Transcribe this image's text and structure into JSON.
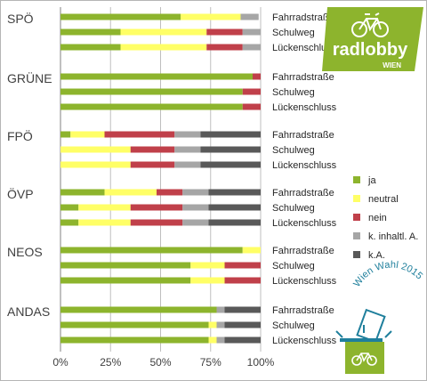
{
  "chart_data": {
    "type": "bar",
    "orientation": "horizontal",
    "stacked": true,
    "xlim": [
      0,
      100
    ],
    "x_ticks": [
      "0%",
      "25%",
      "50%",
      "75%",
      "100%"
    ],
    "grid": "vertical",
    "legend_position": "right",
    "series": [
      {
        "name": "ja",
        "color": "#8db42d"
      },
      {
        "name": "neutral",
        "color": "#ffff66"
      },
      {
        "name": "nein",
        "color": "#c0404a"
      },
      {
        "name": "k. inhaltl. A.",
        "color": "#a6a6a6"
      },
      {
        "name": "k.A.",
        "color": "#595959"
      }
    ],
    "groups": [
      {
        "party": "SPÖ",
        "rows": [
          {
            "label": "Fahrradstraße",
            "values": [
              60,
              30,
              0,
              9,
              0
            ]
          },
          {
            "label": "Schulweg",
            "values": [
              30,
              43,
              18,
              9,
              0
            ]
          },
          {
            "label": "Lückenschluss",
            "values": [
              30,
              43,
              18,
              9,
              0
            ]
          }
        ]
      },
      {
        "party": "GRÜNE",
        "rows": [
          {
            "label": "Fahrradstraße",
            "values": [
              96,
              0,
              4,
              0,
              0
            ]
          },
          {
            "label": "Schulweg",
            "values": [
              91,
              0,
              9,
              0,
              0
            ]
          },
          {
            "label": "Lückenschluss",
            "values": [
              91,
              0,
              9,
              0,
              0
            ]
          }
        ]
      },
      {
        "party": "FPÖ",
        "rows": [
          {
            "label": "Fahrradstraße",
            "values": [
              5,
              17,
              35,
              13,
              30
            ]
          },
          {
            "label": "Schulweg",
            "values": [
              0,
              35,
              22,
              13,
              30
            ]
          },
          {
            "label": "Lückenschluss",
            "values": [
              0,
              35,
              22,
              13,
              30
            ]
          }
        ]
      },
      {
        "party": "ÖVP",
        "rows": [
          {
            "label": "Fahrradstraße",
            "values": [
              22,
              26,
              13,
              13,
              26
            ]
          },
          {
            "label": "Schulweg",
            "values": [
              9,
              26,
              26,
              13,
              26
            ]
          },
          {
            "label": "Lückenschluss",
            "values": [
              9,
              26,
              26,
              13,
              26
            ]
          }
        ]
      },
      {
        "party": "NEOS",
        "rows": [
          {
            "label": "Fahrradstraße",
            "values": [
              91,
              9,
              0,
              0,
              0
            ]
          },
          {
            "label": "Schulweg",
            "values": [
              65,
              17,
              18,
              0,
              0
            ]
          },
          {
            "label": "Lückenschluss",
            "values": [
              65,
              17,
              18,
              0,
              0
            ]
          }
        ]
      },
      {
        "party": "ANDAS",
        "rows": [
          {
            "label": "Fahrradstraße",
            "values": [
              78,
              0,
              0,
              4,
              18
            ]
          },
          {
            "label": "Schulweg",
            "values": [
              74,
              4,
              0,
              4,
              18
            ]
          },
          {
            "label": "Lückenschluss",
            "values": [
              74,
              4,
              0,
              4,
              18
            ]
          }
        ]
      }
    ]
  },
  "logo": {
    "text": "radlobby",
    "subtext": "WIEN",
    "background": "#8db42d"
  },
  "badge": {
    "text": "Wien Wahl 2015",
    "color": "#1f7f9c"
  }
}
